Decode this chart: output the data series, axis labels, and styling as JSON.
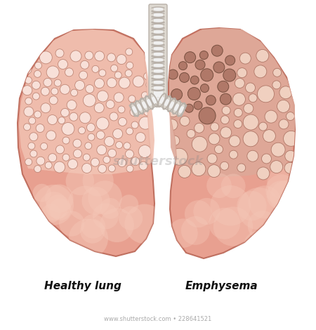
{
  "background_color": "#ffffff",
  "lung_fill": "#e8a090",
  "lung_fill_lower": "#e09080",
  "lung_outline": "#c07060",
  "alveoli_bg_healthy": "#f0c0b0",
  "alveoli_wall_healthy": "#c08878",
  "alveoli_fill_healthy": "#f8e0d8",
  "alveoli_bg_emphysema": "#dda898",
  "alveoli_wall_emphysema": "#b07868",
  "alveoli_fill_emphysema": "#f0d0c0",
  "damaged_fill": "#b07868",
  "damaged_wall": "#785040",
  "trachea_outer": "#ddd8d0",
  "trachea_ring": "#b8b0a8",
  "trachea_inner": "#f0f0f0",
  "highlight_color": "#f5c8b8",
  "label_healthy": "Healthy lung",
  "label_emphysema": "Emphysema",
  "watermark": "www.shutterstock.com • 228641521",
  "label_fontsize": 11,
  "watermark_fontsize": 6
}
